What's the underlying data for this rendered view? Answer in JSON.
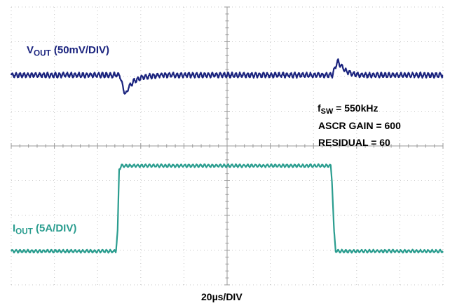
{
  "chart_data": {
    "type": "line",
    "title": "",
    "time_per_div": "20µs/DIV",
    "divisions": {
      "x": 10,
      "y": 8
    },
    "grid": "dotted",
    "x_unit": "µs",
    "xlim": [
      0,
      200
    ],
    "annotations": {
      "fsw": {
        "prefix": "f",
        "sub": "SW",
        "text": " = 550kHz"
      },
      "gain": "ASCR GAIN = 600",
      "residual": "RESIDUAL = 60"
    },
    "series": [
      {
        "key": "vout",
        "label_main": "V",
        "label_sub": "OUT",
        "label_scale": " (50mV/DIV)",
        "color": "#1a237e",
        "unit": "mV",
        "ripple_pp": 6,
        "ripple_freq_mhz": 0.55,
        "baseline": 0,
        "points": [
          [
            0,
            0
          ],
          [
            50.3,
            0
          ],
          [
            52,
            -20
          ],
          [
            53,
            -28
          ],
          [
            54.3,
            -18
          ],
          [
            57,
            -8
          ],
          [
            61,
            -3
          ],
          [
            66,
            -1
          ],
          [
            70,
            0
          ],
          [
            148.8,
            0
          ],
          [
            150.5,
            15
          ],
          [
            151.3,
            20
          ],
          [
            152.8,
            13
          ],
          [
            155,
            6
          ],
          [
            158,
            2
          ],
          [
            162,
            0
          ],
          [
            200,
            0
          ]
        ]
      },
      {
        "key": "iout",
        "label_main": "I",
        "label_sub": "OUT",
        "label_scale": " (5A/DIV)",
        "color": "#2a9d8f",
        "unit": "A",
        "ripple_pp": 0.35,
        "ripple_freq_mhz": 0.55,
        "baseline": 0,
        "points": [
          [
            0,
            0
          ],
          [
            48.5,
            0
          ],
          [
            49.3,
            3
          ],
          [
            50,
            11.8
          ],
          [
            51,
            12.3
          ],
          [
            148,
            12.3
          ],
          [
            148.6,
            10
          ],
          [
            149.5,
            3
          ],
          [
            150.3,
            0
          ],
          [
            200,
            0
          ]
        ]
      }
    ]
  }
}
